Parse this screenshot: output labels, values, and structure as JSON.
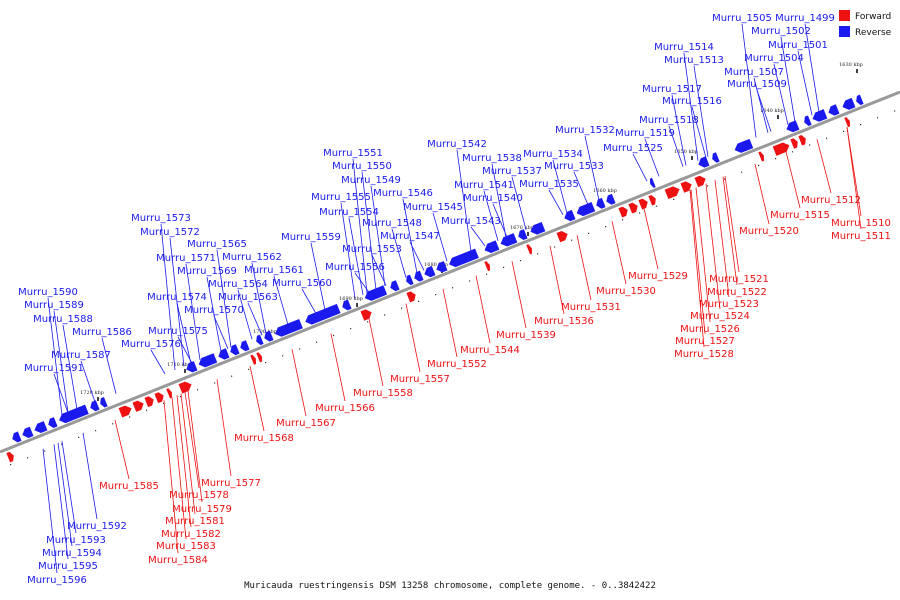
{
  "colors": {
    "forward": "#ee1111",
    "reverse": "#1a1aee",
    "backbone": "#999999"
  },
  "legend": {
    "forward": "Forward",
    "reverse": "Reverse"
  },
  "footer": "Muricauda ruestringensis DSM 13258 chromosome, complete genome. - 0..3842422",
  "ticks": [
    "1630 kbp",
    "1640 kbp",
    "1650 kbp",
    "1660 kbp",
    "1670 kbp",
    "1680 kbp",
    "1690 kbp",
    "1700 kbp",
    "1710 kbp",
    "1720 kbp"
  ],
  "reverse_labels": [
    "Murru_1499",
    "Murru_1501",
    "Murru_1502",
    "Murru_1504",
    "Murru_1505",
    "Murru_1507",
    "Murru_1509",
    "Murru_1513",
    "Murru_1514",
    "Murru_1516",
    "Murru_1517",
    "Murru_1518",
    "Murru_1519",
    "Murru_1525",
    "Murru_1532",
    "Murru_1533",
    "Murru_1534",
    "Murru_1535",
    "Murru_1537",
    "Murru_1538",
    "Murru_1540",
    "Murru_1541",
    "Murru_1542",
    "Murru_1543",
    "Murru_1545",
    "Murru_1546",
    "Murru_1547",
    "Murru_1548",
    "Murru_1549",
    "Murru_1550",
    "Murru_1551",
    "Murru_1553",
    "Murru_1554",
    "Murru_1555",
    "Murru_1556",
    "Murru_1559",
    "Murru_1560",
    "Murru_1561",
    "Murru_1562",
    "Murru_1563",
    "Murru_1564",
    "Murru_1565",
    "Murru_1569",
    "Murru_1570",
    "Murru_1571",
    "Murru_1572",
    "Murru_1573",
    "Murru_1574",
    "Murru_1575",
    "Murru_1576",
    "Murru_1586",
    "Murru_1587",
    "Murru_1588",
    "Murru_1589",
    "Murru_1590",
    "Murru_1591",
    "Murru_1592",
    "Murru_1593",
    "Murru_1594",
    "Murru_1595",
    "Murru_1596"
  ],
  "forward_labels": [
    "Murru_1510",
    "Murru_1511",
    "Murru_1512",
    "Murru_1515",
    "Murru_1520",
    "Murru_1521",
    "Murru_1522",
    "Murru_1523",
    "Murru_1524",
    "Murru_1526",
    "Murru_1527",
    "Murru_1528",
    "Murru_1529",
    "Murru_1530",
    "Murru_1531",
    "Murru_1536",
    "Murru_1539",
    "Murru_1544",
    "Murru_1552",
    "Murru_1557",
    "Murru_1558",
    "Murru_1566",
    "Murru_1567",
    "Murru_1568",
    "Murru_1577",
    "Murru_1578",
    "Murru_1579",
    "Murru_1581",
    "Murru_1582",
    "Murru_1583",
    "Murru_1584",
    "Murru_1585"
  ]
}
